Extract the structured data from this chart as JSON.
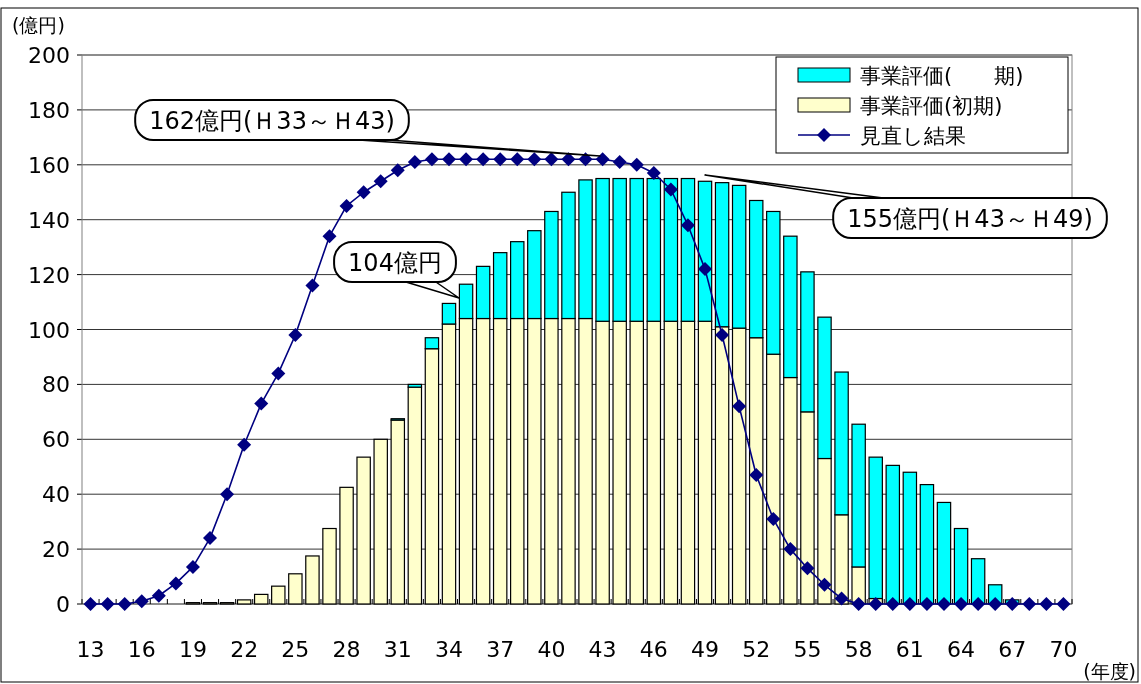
{
  "chart_data": {
    "type": "bar",
    "stacked": true,
    "ylabel": "(億円)",
    "xlabel": "(年度)",
    "categories": [
      "13",
      null,
      null,
      "16",
      null,
      null,
      "19",
      null,
      null,
      "22",
      null,
      null,
      "25",
      null,
      null,
      "28",
      null,
      null,
      "31",
      null,
      null,
      "34",
      null,
      null,
      "37",
      null,
      null,
      "40",
      null,
      null,
      "43",
      null,
      null,
      "46",
      null,
      null,
      "49",
      null,
      null,
      "52",
      null,
      null,
      "55",
      null,
      null,
      "58",
      null,
      null,
      "61",
      null,
      null,
      "64",
      null,
      null,
      "67",
      null,
      null,
      "70"
    ],
    "ylim": [
      0,
      200
    ],
    "yticks": [
      0,
      20,
      40,
      60,
      80,
      100,
      120,
      140,
      160,
      180,
      200
    ],
    "grid": "y",
    "legend": "top right",
    "marker": "diamond",
    "series": [
      {
        "name": "事業評価(初期)",
        "color": "#ffffcc",
        "values": [
          0,
          0,
          0,
          0,
          0,
          0,
          0.5,
          0.5,
          0.5,
          1.5,
          3.5,
          6.5,
          11,
          17.5,
          27.5,
          42.5,
          53.5,
          60,
          67,
          79,
          93,
          102,
          104,
          104,
          104,
          104,
          104,
          104,
          104,
          104,
          103,
          103,
          103,
          103,
          103,
          103,
          103,
          101,
          100.5,
          97,
          91,
          82.5,
          70,
          53,
          32.5,
          13.5,
          2,
          0,
          0,
          0,
          0,
          0,
          0,
          0,
          0,
          0,
          0,
          0
        ]
      },
      {
        "name": "事業評価(　　期)",
        "color": "#00ffff",
        "values": [
          0,
          0,
          0,
          0,
          0,
          0,
          0,
          0,
          0,
          0,
          0,
          0,
          0,
          0,
          0,
          0,
          0,
          0,
          0.5,
          1,
          4,
          7.5,
          12.5,
          19,
          24,
          28,
          32,
          39,
          46,
          50.5,
          52,
          52,
          52,
          52,
          52,
          52,
          51,
          52.5,
          52,
          50,
          52,
          51.5,
          51,
          51.5,
          52,
          52,
          51.5,
          50.5,
          48,
          43.5,
          37,
          27.5,
          16.5,
          7,
          1.5,
          0,
          0,
          0
        ]
      },
      {
        "name": "見直し結果",
        "type": "line",
        "color": "#000080",
        "values": [
          0,
          0,
          0,
          1,
          3,
          7.5,
          13.5,
          24,
          40,
          58,
          73,
          84,
          98,
          116,
          134,
          145,
          150,
          154,
          158,
          161,
          162,
          162,
          162,
          162,
          162,
          162,
          162,
          162,
          162,
          162,
          162,
          161,
          160,
          157,
          151,
          138,
          122,
          98,
          72,
          47,
          31,
          20,
          13,
          7,
          2,
          0,
          0,
          0,
          0,
          0,
          0,
          0,
          0,
          0,
          0,
          0,
          0,
          0
        ]
      }
    ],
    "annotations": [
      "162億円(Ｈ33～Ｈ43)",
      "104億円",
      "155億円(Ｈ43～Ｈ49)"
    ]
  }
}
